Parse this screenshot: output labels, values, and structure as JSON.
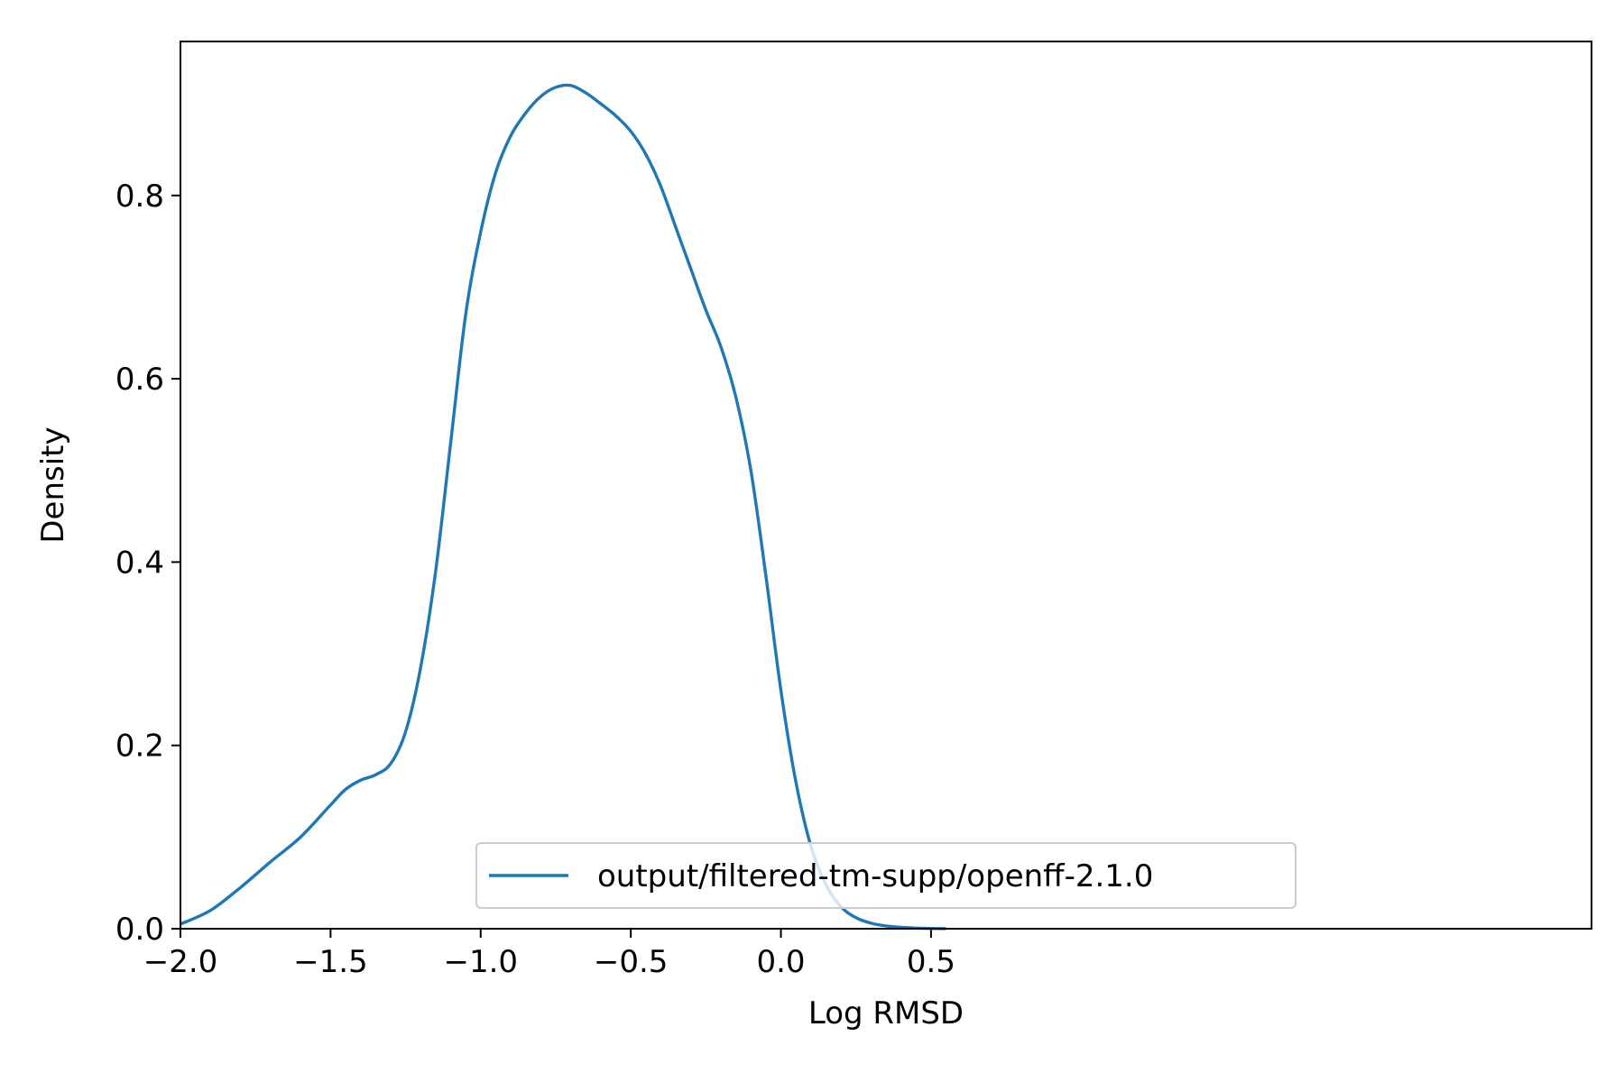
{
  "chart_data": {
    "type": "line",
    "xlabel": "Log RMSD",
    "ylabel": "Density",
    "xlim": [
      -2.0,
      2.7
    ],
    "ylim": [
      0.0,
      0.968
    ],
    "x_tick_values": [
      -2.0,
      -1.5,
      -1.0,
      -0.5,
      0.0,
      0.5
    ],
    "x_tick_labels": [
      "−2.0",
      "−1.5",
      "−1.0",
      "−0.5",
      "0.0",
      "0.5"
    ],
    "y_tick_values": [
      0.0,
      0.2,
      0.4,
      0.6,
      0.8
    ],
    "y_tick_labels": [
      "0.0",
      "0.2",
      "0.4",
      "0.6",
      "0.8"
    ],
    "grid": false,
    "legend_position": "lower center",
    "series": [
      {
        "name": "output/filtered-tm-supp/openff-2.1.0",
        "color": "#1f77b4",
        "x": [
          -2.0,
          -1.9,
          -1.8,
          -1.7,
          -1.6,
          -1.5,
          -1.45,
          -1.4,
          -1.35,
          -1.3,
          -1.25,
          -1.2,
          -1.15,
          -1.1,
          -1.05,
          -1.0,
          -0.95,
          -0.9,
          -0.85,
          -0.8,
          -0.75,
          -0.7,
          -0.65,
          -0.6,
          -0.55,
          -0.5,
          -0.45,
          -0.4,
          -0.35,
          -0.3,
          -0.25,
          -0.2,
          -0.15,
          -0.1,
          -0.05,
          0.0,
          0.05,
          0.1,
          0.15,
          0.2,
          0.25,
          0.3,
          0.35,
          0.4,
          0.45,
          0.5,
          0.55
        ],
        "y": [
          0.005,
          0.02,
          0.045,
          0.073,
          0.1,
          0.135,
          0.152,
          0.162,
          0.168,
          0.18,
          0.215,
          0.285,
          0.39,
          0.53,
          0.67,
          0.76,
          0.825,
          0.865,
          0.89,
          0.908,
          0.918,
          0.92,
          0.912,
          0.9,
          0.887,
          0.87,
          0.845,
          0.81,
          0.765,
          0.72,
          0.675,
          0.635,
          0.58,
          0.5,
          0.385,
          0.26,
          0.16,
          0.09,
          0.048,
          0.024,
          0.012,
          0.006,
          0.003,
          0.0015,
          0.0007,
          0.0003,
          0.0001
        ]
      }
    ]
  }
}
